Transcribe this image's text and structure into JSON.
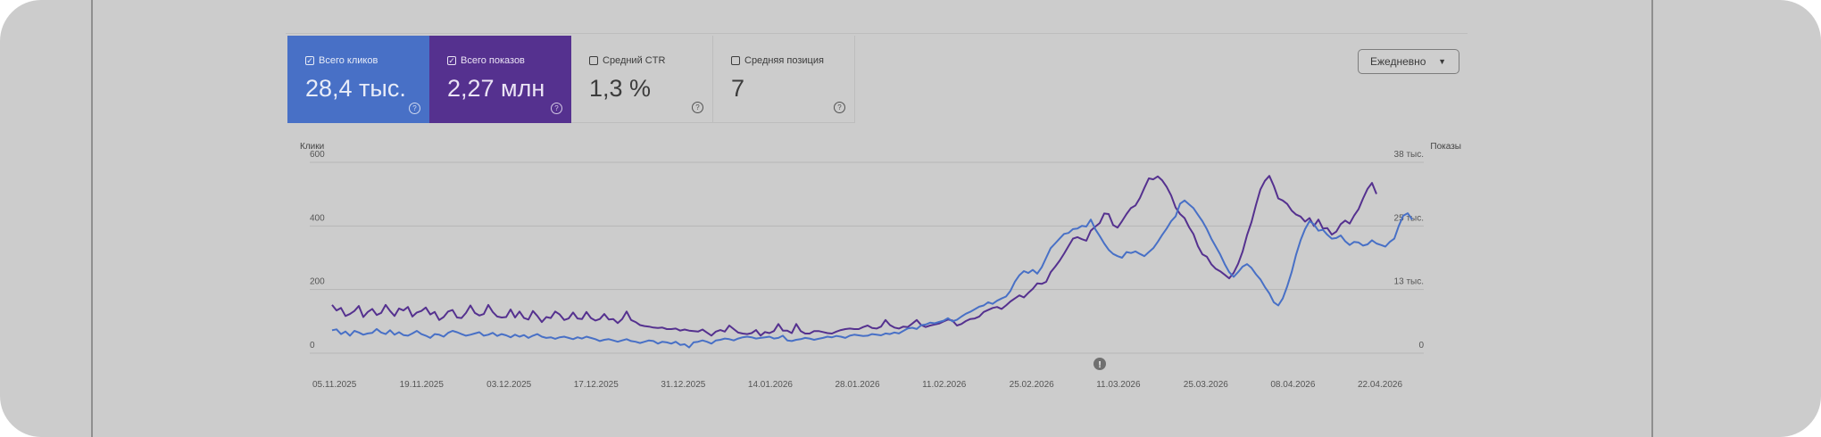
{
  "metrics": [
    {
      "label": "Всего кликов",
      "value": "28,4 тыс.",
      "checked": true
    },
    {
      "label": "Всего показов",
      "value": "2,27 млн",
      "checked": true
    },
    {
      "label": "Средний CTR",
      "value": "1,3 %",
      "checked": false
    },
    {
      "label": "Средняя позиция",
      "value": "7",
      "checked": false
    }
  ],
  "help_glyph": "?",
  "check_glyph": "✓",
  "period_select": {
    "label": "Ежедневно",
    "caret": "▼"
  },
  "colors": {
    "clicks": "#4870c6",
    "impressions": "#55318f",
    "background": "#cccccc"
  },
  "chart_data": {
    "type": "line",
    "left_axis": {
      "title": "Клики",
      "ticks": [
        "600",
        "400",
        "200",
        "0"
      ],
      "range": [
        0,
        600
      ]
    },
    "right_axis": {
      "title": "Показы",
      "ticks": [
        "38 тыс.",
        "25 тыс.",
        "13 тыс.",
        "0"
      ],
      "range": [
        0,
        38000
      ]
    },
    "x_ticks": [
      "05.11.2025",
      "19.11.2025",
      "03.12.2025",
      "17.12.2025",
      "31.12.2025",
      "14.01.2026",
      "28.01.2026",
      "11.02.2026",
      "25.02.2026",
      "11.03.2026",
      "25.03.2026",
      "08.04.2026",
      "22.04.2026"
    ],
    "annotation": {
      "label": "!",
      "date_index": 172
    },
    "series": [
      {
        "key": "clicks",
        "axis": "left",
        "values": [
          72,
          75,
          60,
          68,
          55,
          70,
          65,
          58,
          62,
          64,
          76,
          65,
          60,
          72,
          58,
          66,
          57,
          55,
          62,
          70,
          60,
          55,
          48,
          60,
          58,
          52,
          64,
          70,
          66,
          60,
          55,
          58,
          62,
          66,
          55,
          58,
          64,
          54,
          60,
          56,
          50,
          58,
          52,
          57,
          48,
          55,
          60,
          52,
          48,
          50,
          45,
          50,
          52,
          48,
          44,
          50,
          46,
          52,
          48,
          44,
          38,
          42,
          44,
          40,
          36,
          40,
          44,
          38,
          36,
          32,
          36,
          40,
          38,
          30,
          36,
          34,
          30,
          36,
          26,
          28,
          18,
          34,
          36,
          40,
          36,
          30,
          40,
          42,
          46,
          44,
          40,
          46,
          50,
          52,
          50,
          46,
          48,
          50,
          52,
          46,
          48,
          55,
          40,
          38,
          42,
          44,
          48,
          46,
          42,
          45,
          48,
          52,
          50,
          54,
          52,
          48,
          55,
          58,
          56,
          54,
          55,
          60,
          58,
          56,
          62,
          60,
          65,
          62,
          70,
          78,
          80,
          76,
          88,
          90,
          96,
          94,
          98,
          102,
          110,
          100,
          105,
          115,
          124,
          130,
          138,
          146,
          150,
          160,
          155,
          165,
          172,
          178,
          196,
          225,
          245,
          258,
          252,
          262,
          250,
          270,
          300,
          330,
          345,
          360,
          375,
          378,
          390,
          392,
          400,
          398,
          420,
          390,
          368,
          345,
          325,
          312,
          305,
          300,
          318,
          315,
          320,
          312,
          305,
          318,
          330,
          350,
          372,
          392,
          415,
          430,
          470,
          480,
          468,
          456,
          435,
          415,
          390,
          360,
          335,
          310,
          280,
          255,
          240,
          255,
          272,
          280,
          268,
          248,
          232,
          208,
          188,
          160,
          150,
          172,
          210,
          255,
          310,
          355,
          390,
          415,
          405,
          385,
          388,
          372,
          360,
          362,
          370,
          352,
          340,
          350,
          348,
          338,
          342,
          355,
          345,
          340,
          335,
          350,
          360,
          400,
          432,
          440,
          420
        ]
      },
      {
        "key": "impressions",
        "axis": "right",
        "values": [
          9600,
          8500,
          9000,
          7400,
          7800,
          8400,
          9400,
          7200,
          8200,
          8800,
          7600,
          8000,
          9600,
          8400,
          7400,
          8900,
          8500,
          9200,
          7300,
          8100,
          8400,
          9100,
          7700,
          8200,
          6600,
          7200,
          8300,
          8600,
          7100,
          7000,
          8000,
          9500,
          8000,
          7500,
          7800,
          9600,
          8200,
          7300,
          7100,
          7200,
          8700,
          7100,
          8300,
          7000,
          6700,
          8400,
          7400,
          6200,
          7200,
          7000,
          8300,
          7700,
          6600,
          6900,
          8100,
          6900,
          6800,
          8200,
          7000,
          6500,
          6800,
          7800,
          6700,
          6800,
          6000,
          6800,
          8300,
          6600,
          6200,
          5600,
          5400,
          5300,
          5100,
          5000,
          5100,
          4800,
          4800,
          4900,
          4500,
          4700,
          4500,
          4400,
          4300,
          4700,
          4100,
          3500,
          4300,
          4600,
          4300,
          5500,
          4800,
          4100,
          3900,
          3800,
          4000,
          4600,
          3500,
          4200,
          4000,
          4400,
          5800,
          4500,
          4500,
          4000,
          5800,
          4400,
          3900,
          3900,
          4400,
          4400,
          4200,
          4000,
          3900,
          4300,
          4600,
          4800,
          4900,
          4800,
          4800,
          5200,
          5500,
          5000,
          4900,
          5300,
          6600,
          5600,
          5100,
          4900,
          5300,
          5200,
          5900,
          6600,
          5600,
          5200,
          5500,
          5700,
          5900,
          6300,
          6700,
          6500,
          5500,
          5800,
          6400,
          6800,
          6900,
          7300,
          8200,
          8600,
          9000,
          9200,
          8800,
          9500,
          10300,
          10900,
          11500,
          11100,
          12000,
          12800,
          13900,
          13800,
          14200,
          16100,
          17200,
          18400,
          19800,
          21300,
          22800,
          23100,
          22700,
          22400,
          24400,
          25200,
          25900,
          27800,
          27700,
          25500,
          25000,
          26300,
          27700,
          28900,
          29400,
          30900,
          32900,
          34800,
          34600,
          35200,
          34400,
          33100,
          31400,
          29000,
          27700,
          26900,
          25100,
          23700,
          21300,
          19700,
          19200,
          17700,
          16800,
          16300,
          15600,
          14900,
          16000,
          17800,
          20200,
          23500,
          26100,
          29500,
          32600,
          34300,
          35300,
          33300,
          30800,
          30400,
          29700,
          28400,
          27600,
          27200,
          26200,
          26900,
          25300,
          26600,
          24800,
          24900,
          23600,
          24200,
          25700,
          26400,
          25800,
          27400,
          28700,
          30800,
          32700,
          33900,
          31700
        ]
      }
    ]
  }
}
